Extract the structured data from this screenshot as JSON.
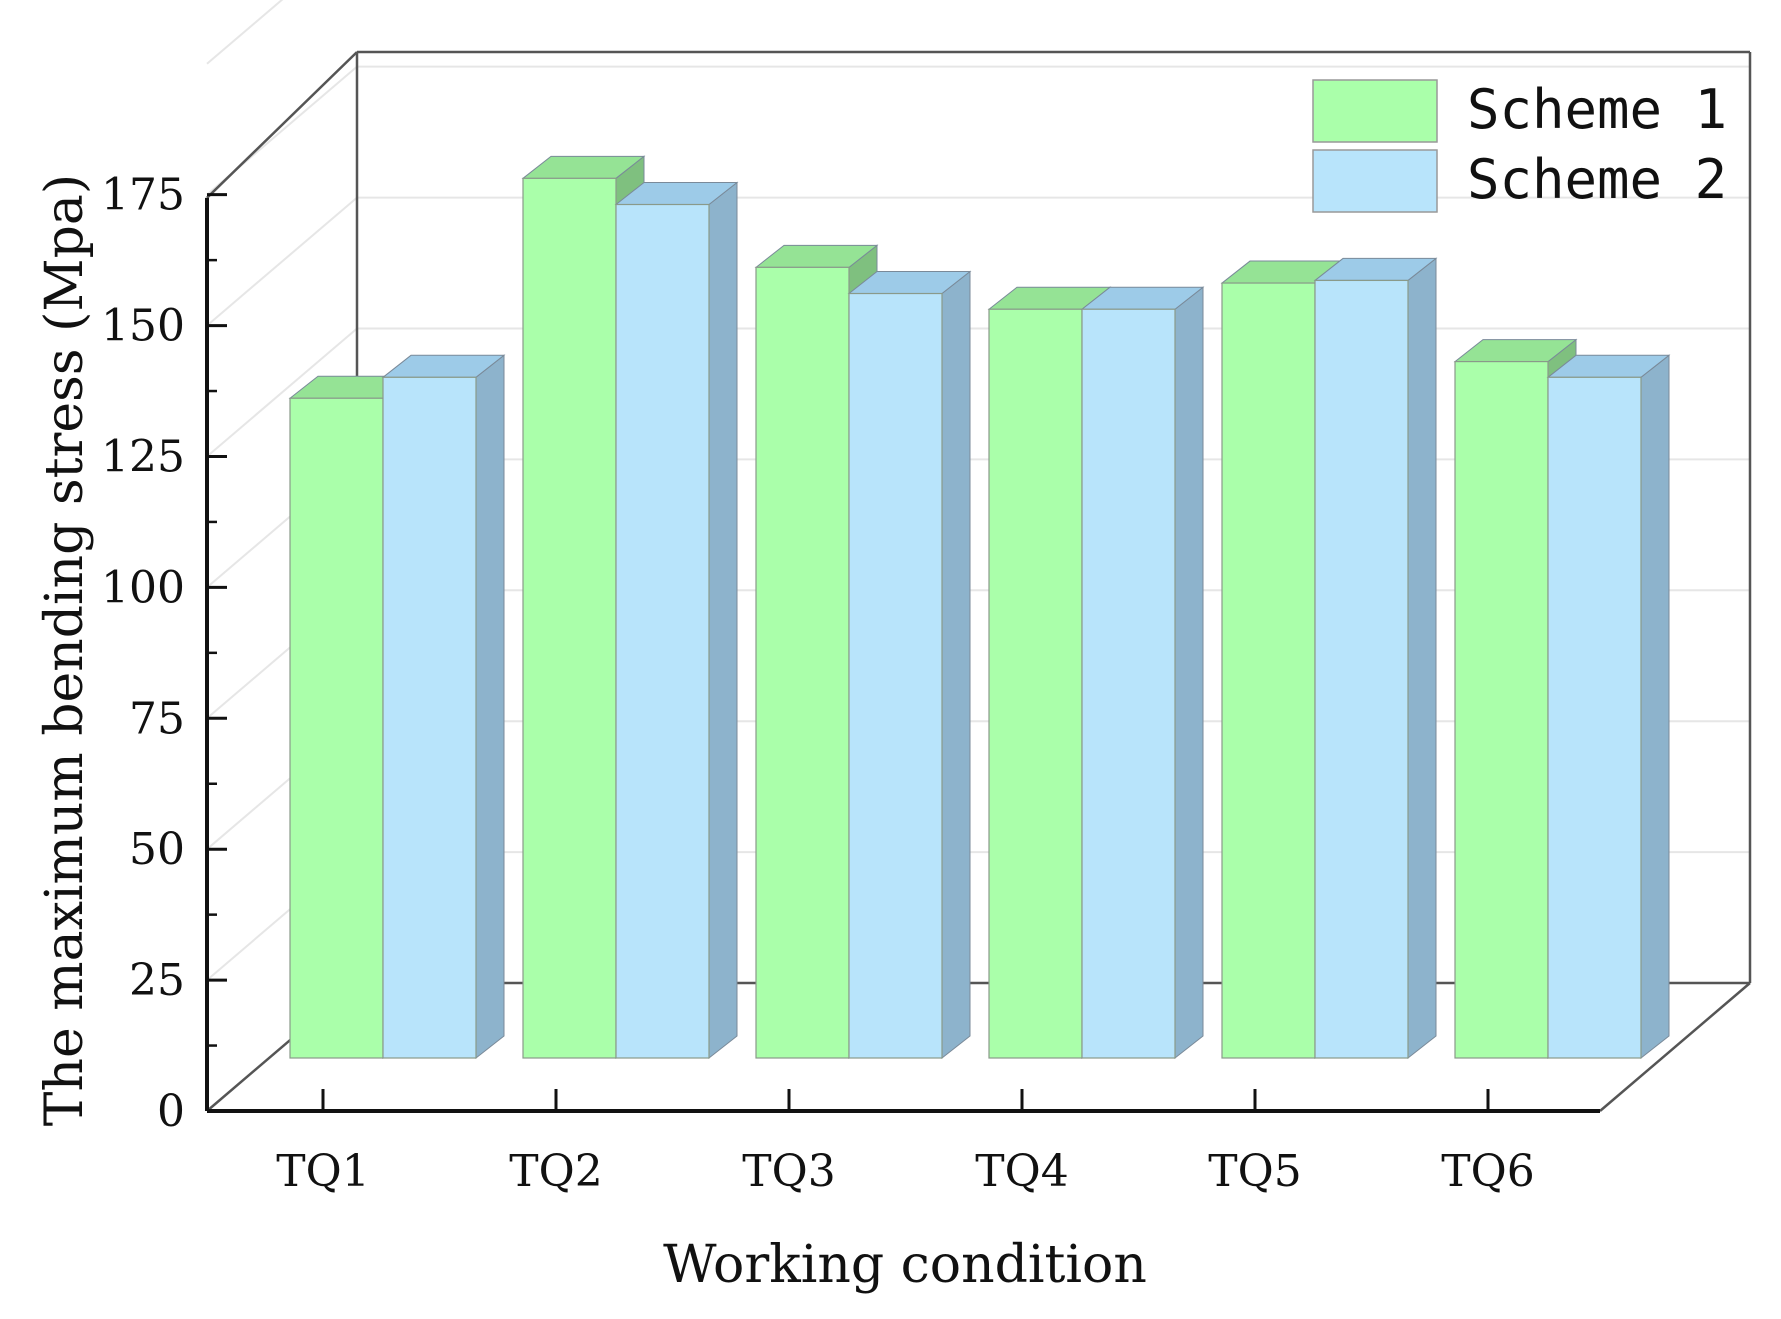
{
  "chart_data": {
    "type": "bar",
    "title": "",
    "xlabel": "Working condition",
    "ylabel": "The maximum bending stress (Mpa)",
    "ylim": [
      0,
      200
    ],
    "yticks": [
      0,
      25,
      50,
      75,
      100,
      125,
      150,
      175
    ],
    "categories": [
      "TQ1",
      "TQ2",
      "TQ3",
      "TQ4",
      "TQ5",
      "TQ6"
    ],
    "series": [
      {
        "name": "Scheme 1",
        "values": [
          126,
          168,
          151,
          143,
          148,
          133
        ],
        "color": "#aaffaa"
      },
      {
        "name": "Scheme 2",
        "values": [
          130,
          163,
          146,
          143,
          148.5,
          130
        ],
        "color": "#b8e4fb"
      }
    ],
    "legend_position": "top-right",
    "grid": true,
    "style": "3d-bars"
  }
}
